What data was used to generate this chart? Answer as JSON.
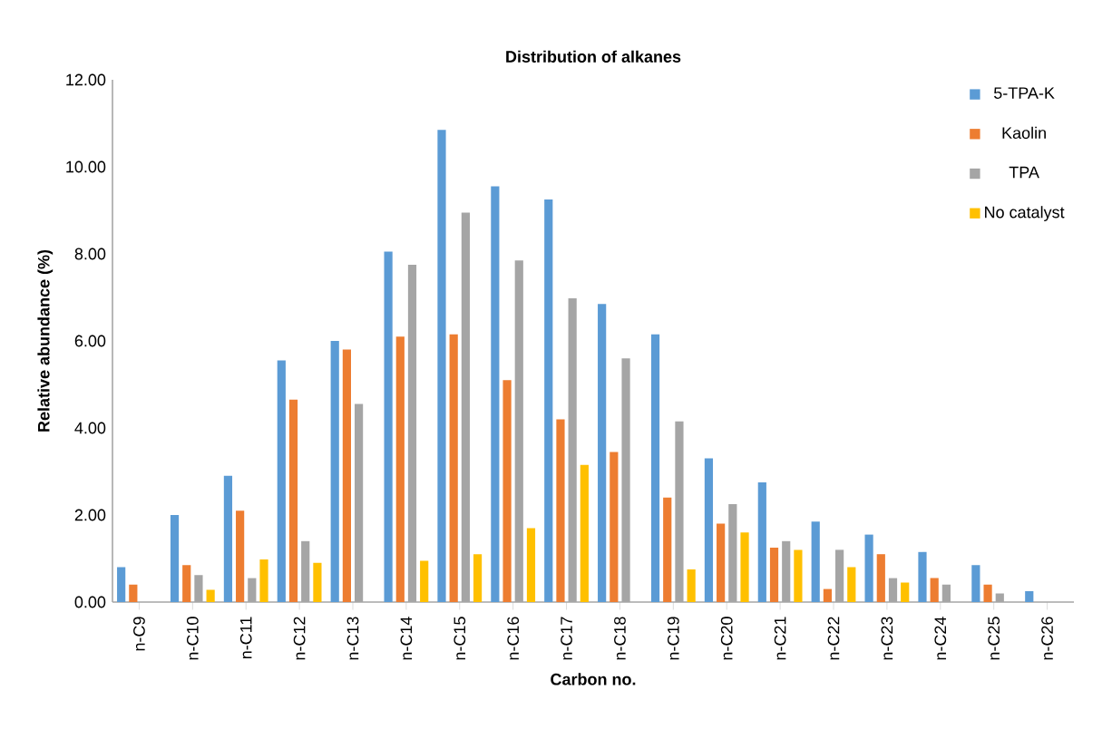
{
  "chart_data": {
    "type": "bar",
    "title": "Distribution of alkanes",
    "xlabel": "Carbon no.",
    "ylabel": "Relative abundance (%)",
    "categories": [
      "n-C9",
      "n-C10",
      "n-C11",
      "n-C12",
      "n-C13",
      "n-C14",
      "n-C15",
      "n-C16",
      "n-C17",
      "n-C18",
      "n-C19",
      "n-C20",
      "n-C21",
      "n-C22",
      "n-C23",
      "n-C24",
      "n-C25",
      "n-C26"
    ],
    "series": [
      {
        "name": "5-TPA-K",
        "color": "#5b9bd5",
        "values": [
          0.8,
          2.0,
          2.9,
          5.55,
          6.0,
          8.05,
          10.85,
          9.55,
          9.25,
          6.85,
          6.15,
          3.3,
          2.75,
          1.85,
          1.55,
          1.15,
          0.85,
          0.25
        ]
      },
      {
        "name": "Kaolin",
        "color": "#ed7d31",
        "values": [
          0.4,
          0.85,
          2.1,
          4.65,
          5.8,
          6.1,
          6.15,
          5.1,
          4.2,
          3.45,
          2.4,
          1.8,
          1.25,
          0.3,
          1.1,
          0.55,
          0.4,
          0
        ]
      },
      {
        "name": "TPA",
        "color": "#a5a5a5",
        "values": [
          0,
          0.62,
          0.55,
          1.4,
          4.55,
          7.75,
          8.95,
          7.85,
          6.98,
          5.6,
          4.15,
          2.25,
          1.4,
          1.2,
          0.55,
          0.4,
          0.2,
          0
        ]
      },
      {
        "name": "No catalyst",
        "color": "#ffc000",
        "values": [
          0,
          0.28,
          0.98,
          0.9,
          0,
          0.95,
          1.1,
          1.7,
          3.15,
          0,
          0.75,
          1.6,
          1.2,
          0.8,
          0.45,
          0,
          0,
          0
        ]
      }
    ],
    "ylim": [
      0,
      12
    ],
    "yticks": [
      {
        "value": 0,
        "label": "0.00"
      },
      {
        "value": 2,
        "label": "2.00"
      },
      {
        "value": 4,
        "label": "4.00"
      },
      {
        "value": 6,
        "label": "6.00"
      },
      {
        "value": 8,
        "label": "8.00"
      },
      {
        "value": 10,
        "label": "10.00"
      },
      {
        "value": 12,
        "label": "12.00"
      }
    ],
    "grid": false,
    "legend": "top right"
  }
}
